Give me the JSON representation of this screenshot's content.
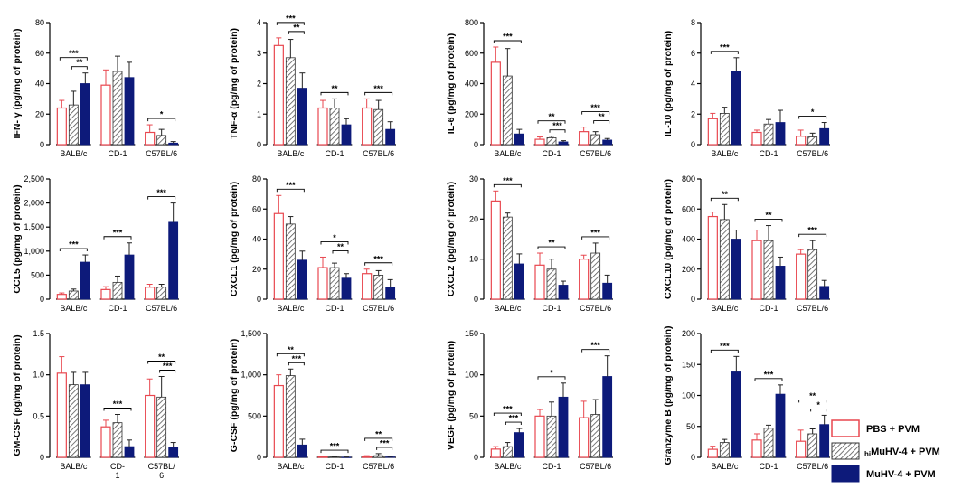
{
  "figure": {
    "legend": [
      {
        "label": "PBS + PVM",
        "style": "open-red"
      },
      {
        "label_prefix": "hi",
        "label": "MuHV-4 + PVM",
        "style": "hatched"
      },
      {
        "label": "MuHV-4 + PVM",
        "style": "solid-navy"
      }
    ],
    "colors": {
      "pbs": "#e8474f",
      "hatch": "#555555",
      "muhv": "#0d1a7a"
    }
  },
  "chart_data": [
    {
      "type": "bar",
      "ylabel": "IFN- γ (pg/mg of protein)",
      "ylim": [
        0,
        80
      ],
      "yticks": [
        "0",
        "20",
        "40",
        "60",
        "80"
      ],
      "categories": [
        "BALB/c",
        "CD-1",
        "C57BL/6"
      ],
      "series": [
        {
          "name": "PBS + PVM",
          "values": [
            24,
            39,
            8
          ],
          "errors": [
            5,
            10,
            5
          ]
        },
        {
          "name": "hiMuHV-4 + PVM",
          "values": [
            26,
            48,
            6
          ],
          "errors": [
            9,
            10,
            4
          ]
        },
        {
          "name": "MuHV-4 + PVM",
          "values": [
            40,
            44,
            1
          ],
          "errors": [
            7,
            10,
            1
          ]
        }
      ],
      "significance": [
        {
          "cat": 0,
          "from": 0,
          "to": 2,
          "label": "***"
        },
        {
          "cat": 0,
          "from": 1,
          "to": 2,
          "label": "**"
        },
        {
          "cat": 2,
          "from": 0,
          "to": 2,
          "label": "*"
        }
      ]
    },
    {
      "type": "bar",
      "ylabel": "TNF-α (pg/mg of protein)",
      "ylim": [
        0,
        4
      ],
      "yticks": [
        "0",
        "1",
        "2",
        "3",
        "4"
      ],
      "categories": [
        "BALB/c",
        "CD-1",
        "C57BL/6"
      ],
      "series": [
        {
          "name": "PBS + PVM",
          "values": [
            3.25,
            1.2,
            1.2
          ],
          "errors": [
            0.25,
            0.25,
            0.3
          ]
        },
        {
          "name": "hiMuHV-4 + PVM",
          "values": [
            2.85,
            1.2,
            1.15
          ],
          "errors": [
            0.6,
            0.3,
            0.3
          ]
        },
        {
          "name": "MuHV-4 + PVM",
          "values": [
            1.85,
            0.65,
            0.5
          ],
          "errors": [
            0.5,
            0.2,
            0.25
          ]
        }
      ],
      "significance": [
        {
          "cat": 0,
          "from": 0,
          "to": 2,
          "label": "***"
        },
        {
          "cat": 0,
          "from": 1,
          "to": 2,
          "label": "**"
        },
        {
          "cat": 1,
          "from": 0,
          "to": 2,
          "label": "**"
        },
        {
          "cat": 2,
          "from": 0,
          "to": 2,
          "label": "***"
        }
      ]
    },
    {
      "type": "bar",
      "ylabel": "IL-6 (pg/mg of protein)",
      "ylim": [
        0,
        800
      ],
      "yticks": [
        "0",
        "200",
        "400",
        "600",
        "800"
      ],
      "categories": [
        "BALB/c",
        "CD-1",
        "C57BL/6"
      ],
      "series": [
        {
          "name": "PBS + PVM",
          "values": [
            540,
            35,
            85
          ],
          "errors": [
            100,
            15,
            30
          ]
        },
        {
          "name": "hiMuHV-4 + PVM",
          "values": [
            450,
            45,
            65
          ],
          "errors": [
            180,
            10,
            20
          ]
        },
        {
          "name": "MuHV-4 + PVM",
          "values": [
            70,
            18,
            30
          ],
          "errors": [
            30,
            8,
            10
          ]
        }
      ],
      "significance": [
        {
          "cat": 0,
          "from": 0,
          "to": 2,
          "label": "***"
        },
        {
          "cat": 1,
          "from": 0,
          "to": 2,
          "label": "**"
        },
        {
          "cat": 1,
          "from": 1,
          "to": 2,
          "label": "***"
        },
        {
          "cat": 2,
          "from": 0,
          "to": 2,
          "label": "***"
        },
        {
          "cat": 2,
          "from": 1,
          "to": 2,
          "label": "**"
        }
      ]
    },
    {
      "type": "bar",
      "ylabel": "IL-10 (pg/mg of protein)",
      "ylim": [
        0,
        8
      ],
      "yticks": [
        "0",
        "2",
        "4",
        "6",
        "8"
      ],
      "categories": [
        "BALB/c",
        "CD-1",
        "C57BL/6"
      ],
      "series": [
        {
          "name": "PBS + PVM",
          "values": [
            1.7,
            0.8,
            0.55
          ],
          "errors": [
            0.35,
            0.15,
            0.4
          ]
        },
        {
          "name": "hiMuHV-4 + PVM",
          "values": [
            2.05,
            1.35,
            0.5
          ],
          "errors": [
            0.4,
            0.3,
            0.25
          ]
        },
        {
          "name": "MuHV-4 + PVM",
          "values": [
            4.8,
            1.45,
            1.05
          ],
          "errors": [
            0.9,
            0.8,
            0.4
          ]
        }
      ],
      "significance": [
        {
          "cat": 0,
          "from": 0,
          "to": 2,
          "label": "***"
        },
        {
          "cat": 2,
          "from": 0,
          "to": 2,
          "label": "*"
        }
      ]
    },
    {
      "type": "bar",
      "ylabel": "CCL5 (pg/mg of protein)",
      "ylim": [
        0,
        2500
      ],
      "yticks": [
        "0",
        "500",
        "1,000",
        "1,500",
        "2,000",
        "2,500"
      ],
      "categories": [
        "BALB/c",
        "CD-1",
        "C57BL/6"
      ],
      "series": [
        {
          "name": "PBS + PVM",
          "values": [
            100,
            200,
            250
          ],
          "errors": [
            30,
            60,
            60
          ]
        },
        {
          "name": "hiMuHV-4 + PVM",
          "values": [
            170,
            350,
            250
          ],
          "errors": [
            40,
            130,
            60
          ]
        },
        {
          "name": "MuHV-4 + PVM",
          "values": [
            770,
            920,
            1600
          ],
          "errors": [
            150,
            250,
            400
          ]
        }
      ],
      "significance": [
        {
          "cat": 0,
          "from": 0,
          "to": 2,
          "label": "***"
        },
        {
          "cat": 1,
          "from": 0,
          "to": 2,
          "label": "***"
        },
        {
          "cat": 2,
          "from": 0,
          "to": 2,
          "label": "***"
        }
      ]
    },
    {
      "type": "bar",
      "ylabel": "CXCL1 (pg/mg of protein)",
      "ylim": [
        0,
        80
      ],
      "yticks": [
        "0",
        "20",
        "40",
        "60",
        "80"
      ],
      "categories": [
        "BALB/c",
        "CD-1",
        "C57BL/6"
      ],
      "series": [
        {
          "name": "PBS + PVM",
          "values": [
            57,
            21,
            17
          ],
          "errors": [
            12,
            7,
            3
          ]
        },
        {
          "name": "hiMuHV-4 + PVM",
          "values": [
            50,
            21,
            16
          ],
          "errors": [
            5,
            3,
            3
          ]
        },
        {
          "name": "MuHV-4 + PVM",
          "values": [
            26,
            14,
            8
          ],
          "errors": [
            6,
            3,
            5
          ]
        }
      ],
      "significance": [
        {
          "cat": 0,
          "from": 0,
          "to": 2,
          "label": "***"
        },
        {
          "cat": 1,
          "from": 0,
          "to": 2,
          "label": "*"
        },
        {
          "cat": 1,
          "from": 1,
          "to": 2,
          "label": "**"
        },
        {
          "cat": 2,
          "from": 0,
          "to": 2,
          "label": "***"
        }
      ]
    },
    {
      "type": "bar",
      "ylabel": "CXCL2 (pg/mg of protein)",
      "ylim": [
        0,
        30
      ],
      "yticks": [
        "0",
        "10",
        "20",
        "30"
      ],
      "categories": [
        "BALB/c",
        "CD-1",
        "C57BL/6"
      ],
      "series": [
        {
          "name": "PBS + PVM",
          "values": [
            24.5,
            8.5,
            10
          ],
          "errors": [
            2.5,
            3,
            1
          ]
        },
        {
          "name": "hiMuHV-4 + PVM",
          "values": [
            20.5,
            7.5,
            11.5
          ],
          "errors": [
            1,
            2.5,
            2.5
          ]
        },
        {
          "name": "MuHV-4 + PVM",
          "values": [
            8.8,
            3.5,
            4
          ],
          "errors": [
            2.5,
            1,
            2
          ]
        }
      ],
      "significance": [
        {
          "cat": 0,
          "from": 0,
          "to": 2,
          "label": "***"
        },
        {
          "cat": 1,
          "from": 0,
          "to": 2,
          "label": "**"
        },
        {
          "cat": 2,
          "from": 0,
          "to": 2,
          "label": "***"
        }
      ]
    },
    {
      "type": "bar",
      "ylabel": "CXCL10 (pg/mg of protein)",
      "ylim": [
        0,
        800
      ],
      "yticks": [
        "0",
        "200",
        "400",
        "600",
        "800"
      ],
      "categories": [
        "BALB/c",
        "CD-1",
        "C57BL/6"
      ],
      "series": [
        {
          "name": "PBS + PVM",
          "values": [
            550,
            390,
            300
          ],
          "errors": [
            30,
            70,
            30
          ]
        },
        {
          "name": "hiMuHV-4 + PVM",
          "values": [
            530,
            390,
            330
          ],
          "errors": [
            100,
            100,
            60
          ]
        },
        {
          "name": "MuHV-4 + PVM",
          "values": [
            400,
            220,
            85
          ],
          "errors": [
            60,
            60,
            40
          ]
        }
      ],
      "significance": [
        {
          "cat": 0,
          "from": 0,
          "to": 2,
          "label": "**"
        },
        {
          "cat": 1,
          "from": 0,
          "to": 2,
          "label": "**"
        },
        {
          "cat": 2,
          "from": 0,
          "to": 2,
          "label": "***"
        }
      ]
    },
    {
      "type": "bar",
      "ylabel": "GM-CSF (pg/mg of protein)",
      "ylim": [
        0,
        1.5
      ],
      "yticks": [
        "0",
        "0.5",
        "1.0",
        "1.5"
      ],
      "categories": [
        "BALB/c",
        "CD-\n1",
        "C57BL/\n6"
      ],
      "series": [
        {
          "name": "PBS + PVM",
          "values": [
            1.02,
            0.37,
            0.75
          ],
          "errors": [
            0.2,
            0.08,
            0.2
          ]
        },
        {
          "name": "hiMuHV-4 + PVM",
          "values": [
            0.88,
            0.42,
            0.73
          ],
          "errors": [
            0.15,
            0.1,
            0.25
          ]
        },
        {
          "name": "MuHV-4 + PVM",
          "values": [
            0.88,
            0.13,
            0.12
          ],
          "errors": [
            0.15,
            0.08,
            0.06
          ]
        }
      ],
      "significance": [
        {
          "cat": 1,
          "from": 0,
          "to": 2,
          "label": "***"
        },
        {
          "cat": 2,
          "from": 0,
          "to": 2,
          "label": "**"
        },
        {
          "cat": 2,
          "from": 1,
          "to": 2,
          "label": "***"
        }
      ]
    },
    {
      "type": "bar",
      "ylabel": "G-CSF (pg/mg of protein)",
      "ylim": [
        0,
        1500
      ],
      "yticks": [
        "0",
        "500",
        "1,000",
        "1,500"
      ],
      "categories": [
        "BALB/c",
        "CD-1",
        "C57BL/6"
      ],
      "series": [
        {
          "name": "PBS + PVM",
          "values": [
            870,
            5,
            10
          ],
          "errors": [
            130,
            5,
            10
          ]
        },
        {
          "name": "hiMuHV-4 + PVM",
          "values": [
            990,
            5,
            20
          ],
          "errors": [
            80,
            5,
            25
          ]
        },
        {
          "name": "MuHV-4 + PVM",
          "values": [
            150,
            2,
            5
          ],
          "errors": [
            70,
            2,
            5
          ]
        }
      ],
      "significance": [
        {
          "cat": 0,
          "from": 0,
          "to": 2,
          "label": "**"
        },
        {
          "cat": 0,
          "from": 1,
          "to": 2,
          "label": "***"
        },
        {
          "cat": 1,
          "from": 0,
          "to": 2,
          "label": "***"
        },
        {
          "cat": 2,
          "from": 0,
          "to": 2,
          "label": "**"
        },
        {
          "cat": 2,
          "from": 1,
          "to": 2,
          "label": "***"
        }
      ]
    },
    {
      "type": "bar",
      "ylabel": "VEGF (pg/mg of protein)",
      "ylim": [
        0,
        150
      ],
      "yticks": [
        "0",
        "50",
        "100",
        "150"
      ],
      "categories": [
        "BALB/c",
        "CD-1",
        "C57BL/6"
      ],
      "series": [
        {
          "name": "PBS + PVM",
          "values": [
            10,
            50,
            48
          ],
          "errors": [
            3,
            8,
            20
          ]
        },
        {
          "name": "hiMuHV-4 + PVM",
          "values": [
            13,
            50,
            52
          ],
          "errors": [
            5,
            17,
            18
          ]
        },
        {
          "name": "MuHV-4 + PVM",
          "values": [
            30,
            73,
            98
          ],
          "errors": [
            5,
            17,
            25
          ]
        }
      ],
      "significance": [
        {
          "cat": 0,
          "from": 0,
          "to": 2,
          "label": "***"
        },
        {
          "cat": 0,
          "from": 1,
          "to": 2,
          "label": "***"
        },
        {
          "cat": 1,
          "from": 0,
          "to": 2,
          "label": "*"
        },
        {
          "cat": 2,
          "from": 0,
          "to": 2,
          "label": "***"
        }
      ]
    },
    {
      "type": "bar",
      "ylabel": "Granzyme B (pg/mg of protein)",
      "ylim": [
        0,
        200
      ],
      "yticks": [
        "0",
        "50",
        "100",
        "150",
        "200"
      ],
      "categories": [
        "BALB/c",
        "CD-1",
        "C57BL/6"
      ],
      "series": [
        {
          "name": "PBS + PVM",
          "values": [
            13,
            28,
            26
          ],
          "errors": [
            5,
            10,
            18
          ]
        },
        {
          "name": "hiMuHV-4 + PVM",
          "values": [
            24,
            47,
            38
          ],
          "errors": [
            5,
            5,
            8
          ]
        },
        {
          "name": "MuHV-4 + PVM",
          "values": [
            138,
            102,
            53
          ],
          "errors": [
            25,
            15,
            15
          ]
        }
      ],
      "significance": [
        {
          "cat": 0,
          "from": 0,
          "to": 2,
          "label": "***"
        },
        {
          "cat": 1,
          "from": 0,
          "to": 2,
          "label": "***"
        },
        {
          "cat": 2,
          "from": 0,
          "to": 2,
          "label": "**"
        },
        {
          "cat": 2,
          "from": 1,
          "to": 2,
          "label": "*"
        }
      ]
    }
  ]
}
